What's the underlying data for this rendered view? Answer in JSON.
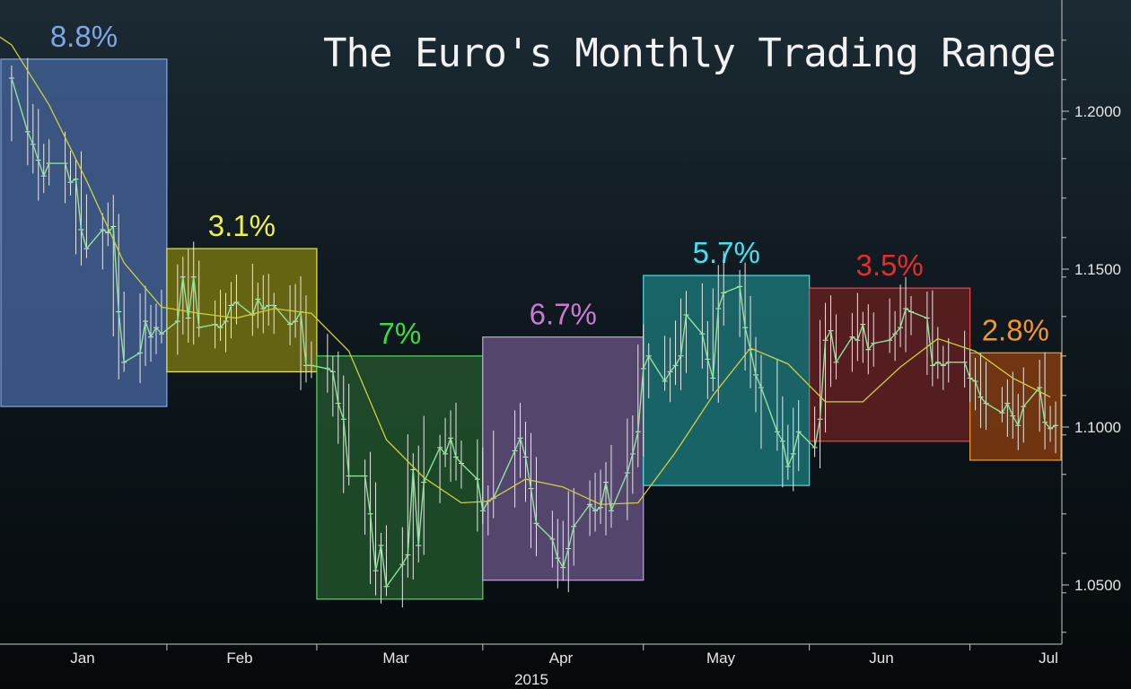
{
  "chart_data": {
    "type": "line",
    "title": "The Euro's Monthly Trading Range",
    "xlabel": "2015",
    "ylabel": "",
    "ylim": [
      1.025,
      1.2355
    ],
    "y_ticks": [
      "1.0500",
      "1.1000",
      "1.1500",
      "1.2000"
    ],
    "x_ticks": [
      "Jan",
      "Feb",
      "Mar",
      "Apr",
      "May",
      "Jun",
      "Jul"
    ],
    "grid": false,
    "colors": {
      "price": "#8fe39a",
      "moving_average": "#cfcf3a",
      "axis": "#c8c8c8",
      "tick_text": "#e6e6e6"
    },
    "ranges": [
      {
        "month": "Jan",
        "label": "8.8%",
        "high": 1.2165,
        "low": 1.1065,
        "fill": "#3e5a8a",
        "stroke": "#7fa6e8",
        "label_color": "#7fa6e8"
      },
      {
        "month": "Feb",
        "label": "3.1%",
        "high": 1.1565,
        "low": 1.1175,
        "fill": "#6b6a12",
        "stroke": "#e8e84a",
        "label_color": "#f0f04a"
      },
      {
        "month": "Mar",
        "label": "7%",
        "high": 1.1225,
        "low": 1.0455,
        "fill": "#1f4d2a",
        "stroke": "#58d864",
        "label_color": "#3ddc3d"
      },
      {
        "month": "Apr",
        "label": "6.7%",
        "high": 1.1285,
        "low": 1.0515,
        "fill": "#5a4a73",
        "stroke": "#c0a4e0",
        "label_color": "#c77ad6"
      },
      {
        "month": "May",
        "label": "5.7%",
        "high": 1.148,
        "low": 1.0815,
        "fill": "#1a6a6e",
        "stroke": "#49e0e8",
        "label_color": "#3fe4f0"
      },
      {
        "month": "Jun",
        "label": "3.5%",
        "high": 1.144,
        "low": 1.0955,
        "fill": "#5a1e20",
        "stroke": "#e84a4a",
        "label_color": "#ec2a2a"
      },
      {
        "month": "Jul",
        "label": "2.8%",
        "high": 1.1235,
        "low": 1.0895,
        "fill": "#7a3810",
        "stroke": "#f09a3a",
        "label_color": "#f3962e"
      }
    ],
    "series": [
      {
        "values": [
          [
            "2015-01-02",
            1.2105
          ],
          [
            "2015-01-05",
            1.1935
          ],
          [
            "2015-01-06",
            1.1895
          ],
          [
            "2015-01-07",
            1.1845
          ],
          [
            "2015-01-08",
            1.1795
          ],
          [
            "2015-01-09",
            1.1835
          ],
          [
            "2015-01-12",
            1.1835
          ],
          [
            "2015-01-13",
            1.1775
          ],
          [
            "2015-01-14",
            1.1785
          ],
          [
            "2015-01-15",
            1.1625
          ],
          [
            "2015-01-16",
            1.1565
          ],
          [
            "2015-01-19",
            1.1625
          ],
          [
            "2015-01-20",
            1.1615
          ],
          [
            "2015-01-21",
            1.1635
          ],
          [
            "2015-01-22",
            1.1365
          ],
          [
            "2015-01-23",
            1.1205
          ],
          [
            "2015-01-26",
            1.1235
          ],
          [
            "2015-01-27",
            1.1335
          ],
          [
            "2015-01-28",
            1.1285
          ],
          [
            "2015-01-29",
            1.1315
          ],
          [
            "2015-01-30",
            1.1295
          ],
          [
            "2015-02-02",
            1.1335
          ],
          [
            "2015-02-03",
            1.1475
          ],
          [
            "2015-02-04",
            1.1345
          ],
          [
            "2015-02-05",
            1.1475
          ],
          [
            "2015-02-06",
            1.1315
          ],
          [
            "2015-02-09",
            1.1325
          ],
          [
            "2015-02-10",
            1.1315
          ],
          [
            "2015-02-11",
            1.1335
          ],
          [
            "2015-02-12",
            1.1385
          ],
          [
            "2015-02-13",
            1.1395
          ],
          [
            "2015-02-16",
            1.1355
          ],
          [
            "2015-02-17",
            1.1405
          ],
          [
            "2015-02-18",
            1.1375
          ],
          [
            "2015-02-19",
            1.1385
          ],
          [
            "2015-02-20",
            1.1385
          ],
          [
            "2015-02-23",
            1.1325
          ],
          [
            "2015-02-24",
            1.1335
          ],
          [
            "2015-02-25",
            1.1365
          ],
          [
            "2015-02-26",
            1.1195
          ],
          [
            "2015-02-27",
            1.1195
          ],
          [
            "2015-03-02",
            1.1185
          ],
          [
            "2015-03-03",
            1.1175
          ],
          [
            "2015-03-04",
            1.1075
          ],
          [
            "2015-03-05",
            1.1025
          ],
          [
            "2015-03-06",
            1.0845
          ],
          [
            "2015-03-09",
            1.0845
          ],
          [
            "2015-03-10",
            1.0725
          ],
          [
            "2015-03-11",
            1.0545
          ],
          [
            "2015-03-12",
            1.0625
          ],
          [
            "2015-03-13",
            1.0495
          ],
          [
            "2015-03-16",
            1.0565
          ],
          [
            "2015-03-17",
            1.0595
          ],
          [
            "2015-03-18",
            1.0865
          ],
          [
            "2015-03-19",
            1.0625
          ],
          [
            "2015-03-20",
            1.0825
          ],
          [
            "2015-03-23",
            1.0935
          ],
          [
            "2015-03-24",
            1.0915
          ],
          [
            "2015-03-25",
            1.0965
          ],
          [
            "2015-03-26",
            1.0905
          ],
          [
            "2015-03-27",
            1.0885
          ],
          [
            "2015-03-30",
            1.0835
          ],
          [
            "2015-03-31",
            1.0735
          ],
          [
            "2015-04-01",
            1.0765
          ],
          [
            "2015-04-02",
            1.0775
          ],
          [
            "2015-04-06",
            1.0925
          ],
          [
            "2015-04-07",
            1.0965
          ],
          [
            "2015-04-08",
            1.0905
          ],
          [
            "2015-04-09",
            1.0805
          ],
          [
            "2015-04-10",
            1.0695
          ],
          [
            "2015-04-13",
            1.0645
          ],
          [
            "2015-04-14",
            1.0585
          ],
          [
            "2015-04-15",
            1.0555
          ],
          [
            "2015-04-16",
            1.0615
          ],
          [
            "2015-04-17",
            1.0685
          ],
          [
            "2015-04-20",
            1.0755
          ],
          [
            "2015-04-21",
            1.0735
          ],
          [
            "2015-04-22",
            1.0745
          ],
          [
            "2015-04-23",
            1.0825
          ],
          [
            "2015-04-24",
            1.0735
          ],
          [
            "2015-04-27",
            1.0855
          ],
          [
            "2015-04-28",
            1.0915
          ],
          [
            "2015-04-29",
            1.0985
          ],
          [
            "2015-04-30",
            1.1185
          ],
          [
            "2015-05-01",
            1.1225
          ],
          [
            "2015-05-04",
            1.1145
          ],
          [
            "2015-05-05",
            1.1175
          ],
          [
            "2015-05-06",
            1.1195
          ],
          [
            "2015-05-07",
            1.1225
          ],
          [
            "2015-05-08",
            1.1355
          ],
          [
            "2015-05-11",
            1.1295
          ],
          [
            "2015-05-12",
            1.1215
          ],
          [
            "2015-05-13",
            1.1155
          ],
          [
            "2015-05-14",
            1.1375
          ],
          [
            "2015-05-15",
            1.1425
          ],
          [
            "2015-05-18",
            1.1445
          ],
          [
            "2015-05-19",
            1.1315
          ],
          [
            "2015-05-20",
            1.1245
          ],
          [
            "2015-05-21",
            1.1165
          ],
          [
            "2015-05-22",
            1.1125
          ],
          [
            "2015-05-25",
            1.0985
          ],
          [
            "2015-05-26",
            1.0955
          ],
          [
            "2015-05-27",
            1.0875
          ],
          [
            "2015-05-28",
            1.0915
          ],
          [
            "2015-05-29",
            1.0985
          ],
          [
            "2015-06-01",
            1.0935
          ],
          [
            "2015-06-02",
            1.1025
          ],
          [
            "2015-06-03",
            1.1275
          ],
          [
            "2015-06-04",
            1.1305
          ],
          [
            "2015-06-05",
            1.1205
          ],
          [
            "2015-06-08",
            1.1285
          ],
          [
            "2015-06-09",
            1.1275
          ],
          [
            "2015-06-10",
            1.1325
          ],
          [
            "2015-06-11",
            1.1245
          ],
          [
            "2015-06-12",
            1.1265
          ],
          [
            "2015-06-15",
            1.1275
          ],
          [
            "2015-06-16",
            1.1295
          ],
          [
            "2015-06-17",
            1.1315
          ],
          [
            "2015-06-18",
            1.1375
          ],
          [
            "2015-06-19",
            1.1365
          ],
          [
            "2015-06-22",
            1.1345
          ],
          [
            "2015-06-23",
            1.1195
          ],
          [
            "2015-06-24",
            1.1205
          ],
          [
            "2015-06-25",
            1.1195
          ],
          [
            "2015-06-26",
            1.1205
          ],
          [
            "2015-06-29",
            1.1205
          ],
          [
            "2015-06-30",
            1.1155
          ],
          [
            "2015-07-01",
            1.1145
          ],
          [
            "2015-07-02",
            1.1095
          ],
          [
            "2015-07-03",
            1.1075
          ],
          [
            "2015-07-06",
            1.1045
          ],
          [
            "2015-07-07",
            1.1075
          ],
          [
            "2015-07-08",
            1.1035
          ],
          [
            "2015-07-09",
            1.1005
          ],
          [
            "2015-07-10",
            1.1065
          ],
          [
            "2015-07-13",
            1.1125
          ],
          [
            "2015-07-14",
            1.1015
          ],
          [
            "2015-07-15",
            1.0995
          ],
          [
            "2015-07-16",
            1.1005
          ]
        ]
      },
      {
        "values": [
          [
            "2015-01-02",
            1.221
          ],
          [
            "2015-01-09",
            1.202
          ],
          [
            "2015-01-16",
            1.178
          ],
          [
            "2015-01-23",
            1.152
          ],
          [
            "2015-01-30",
            1.138
          ],
          [
            "2015-02-06",
            1.136
          ],
          [
            "2015-02-13",
            1.1345
          ],
          [
            "2015-02-20",
            1.1375
          ],
          [
            "2015-02-27",
            1.136
          ],
          [
            "2015-03-06",
            1.124
          ],
          [
            "2015-03-13",
            1.096
          ],
          [
            "2015-03-20",
            1.084
          ],
          [
            "2015-03-27",
            1.076
          ],
          [
            "2015-04-01",
            1.0765
          ],
          [
            "2015-04-08",
            1.0835
          ],
          [
            "2015-04-15",
            1.081
          ],
          [
            "2015-04-22",
            1.0755
          ],
          [
            "2015-04-29",
            1.076
          ],
          [
            "2015-05-06",
            1.092
          ],
          [
            "2015-05-13",
            1.11
          ],
          [
            "2015-05-20",
            1.125
          ],
          [
            "2015-05-27",
            1.12
          ],
          [
            "2015-06-03",
            1.108
          ],
          [
            "2015-06-10",
            1.108
          ],
          [
            "2015-06-17",
            1.119
          ],
          [
            "2015-06-24",
            1.128
          ],
          [
            "2015-07-01",
            1.124
          ],
          [
            "2015-07-08",
            1.1155
          ],
          [
            "2015-07-15",
            1.1095
          ]
        ]
      }
    ]
  }
}
